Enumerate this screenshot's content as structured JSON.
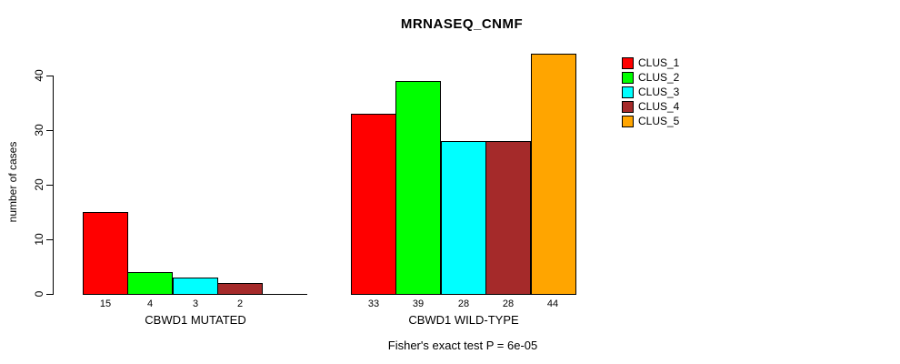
{
  "title": "MRNASEQ_CNMF",
  "footer": "Fisher's exact test P = 6e-05",
  "chart_data": {
    "type": "bar",
    "title": "MRNASEQ_CNMF",
    "xlabel": "",
    "ylabel": "number of cases",
    "ylim": [
      0,
      44
    ],
    "yticks": [
      0,
      10,
      20,
      30,
      40
    ],
    "grid": false,
    "legend_position": "right",
    "categories": [
      "CBWD1 MUTATED",
      "CBWD1 WILD-TYPE"
    ],
    "series": [
      {
        "name": "CLUS_1",
        "color": "#FF0000",
        "values": [
          15,
          33
        ]
      },
      {
        "name": "CLUS_2",
        "color": "#00FF00",
        "values": [
          4,
          39
        ]
      },
      {
        "name": "CLUS_3",
        "color": "#00FFFF",
        "values": [
          3,
          28
        ]
      },
      {
        "name": "CLUS_4",
        "color": "#A52A2A",
        "values": [
          2,
          28
        ]
      },
      {
        "name": "CLUS_5",
        "color": "#FFA500",
        "values": [
          0,
          44
        ]
      }
    ],
    "bar_value_labels": [
      "15",
      "4",
      "3",
      "2",
      "33",
      "39",
      "28",
      "28",
      "44"
    ],
    "annotation": "Fisher's exact test P = 6e-05"
  }
}
